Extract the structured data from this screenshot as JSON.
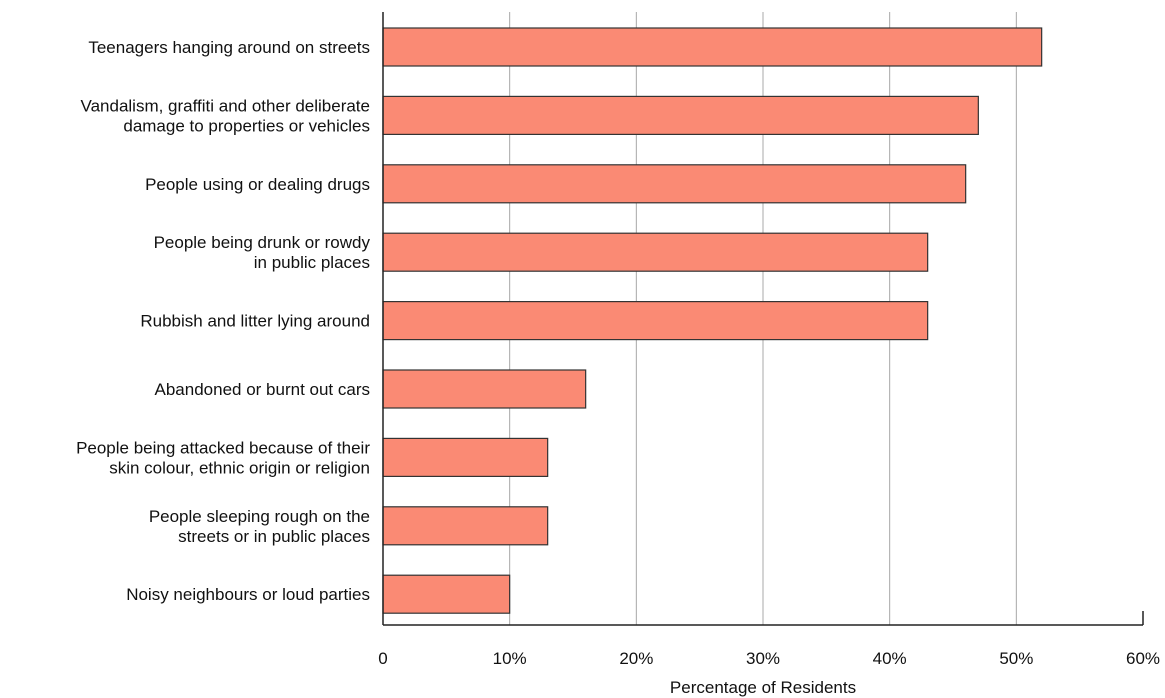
{
  "chart_data": {
    "type": "bar",
    "orientation": "horizontal",
    "title": "",
    "xlabel": "Percentage of Residents",
    "ylabel": "",
    "xlim": [
      0,
      60
    ],
    "x_ticks": [
      "0",
      "10%",
      "20%",
      "30%",
      "40%",
      "50%",
      "60%"
    ],
    "grid": "vertical",
    "legend": "none",
    "bar_color": "#FA8A74",
    "bar_edge_color": "#333333",
    "categories": [
      [
        "Teenagers hanging around on streets"
      ],
      [
        "Vandalism, graffiti and other deliberate",
        "damage to properties or vehicles"
      ],
      [
        "People using or dealing drugs"
      ],
      [
        "People being drunk or rowdy",
        "in public places"
      ],
      [
        "Rubbish and litter lying around"
      ],
      [
        "Abandoned or burnt out cars"
      ],
      [
        "People being attacked because of their",
        "skin colour, ethnic origin or religion"
      ],
      [
        "People sleeping rough on the",
        "streets or in public places"
      ],
      [
        "Noisy neighbours or loud parties"
      ]
    ],
    "values": [
      52,
      47,
      46,
      43,
      43,
      16,
      13,
      13,
      10
    ]
  }
}
